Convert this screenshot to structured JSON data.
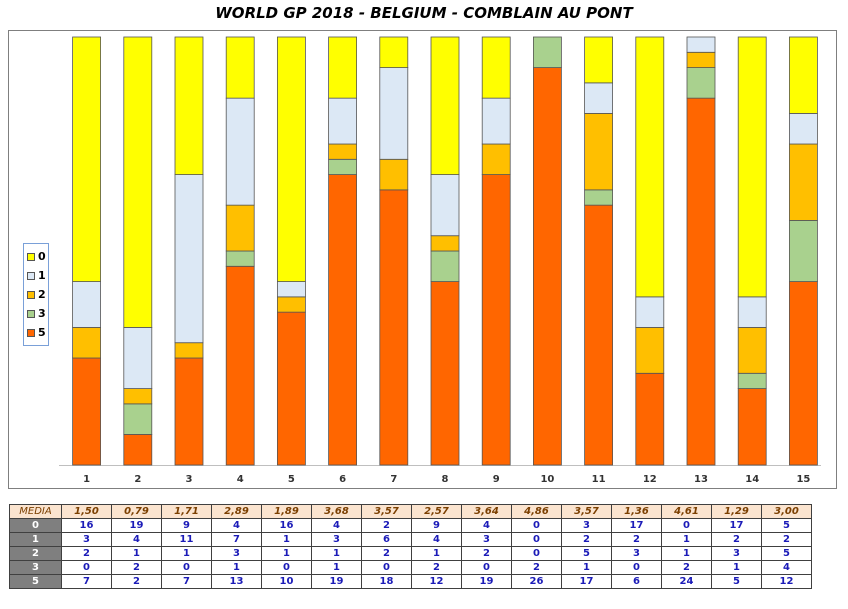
{
  "title": "WORLD GP 2018 - BELGIUM - COMBLAIN AU PONT",
  "colors": {
    "0": "#ffff00",
    "1": "#dce8f5",
    "2": "#ffbf00",
    "3": "#a9d18e",
    "5": "#ff6600"
  },
  "legend": [
    "0",
    "1",
    "2",
    "3",
    "5"
  ],
  "chart_data": {
    "type": "bar",
    "stacked": true,
    "title": "WORLD GP 2018 - BELGIUM - COMBLAIN AU PONT",
    "categories": [
      "1",
      "2",
      "3",
      "4",
      "5",
      "6",
      "7",
      "8",
      "9",
      "10",
      "11",
      "12",
      "13",
      "14",
      "15"
    ],
    "stack_order_bottom_to_top": [
      "5",
      "3",
      "2",
      "1",
      "0"
    ],
    "series": [
      {
        "name": "0",
        "values": [
          16,
          19,
          9,
          4,
          16,
          4,
          2,
          9,
          4,
          0,
          3,
          17,
          0,
          17,
          5
        ]
      },
      {
        "name": "1",
        "values": [
          3,
          4,
          11,
          7,
          1,
          3,
          6,
          4,
          3,
          0,
          2,
          2,
          1,
          2,
          2
        ]
      },
      {
        "name": "2",
        "values": [
          2,
          1,
          1,
          3,
          1,
          1,
          2,
          1,
          2,
          0,
          5,
          3,
          1,
          3,
          5
        ]
      },
      {
        "name": "3",
        "values": [
          0,
          2,
          0,
          1,
          0,
          1,
          0,
          2,
          0,
          2,
          1,
          0,
          2,
          1,
          4
        ]
      },
      {
        "name": "5",
        "values": [
          7,
          2,
          7,
          13,
          10,
          19,
          18,
          12,
          19,
          26,
          17,
          6,
          24,
          5,
          12
        ]
      }
    ],
    "ylim": [
      0,
      28
    ],
    "legend_position": "left",
    "grid": false
  },
  "table": {
    "media_label": "MEDIA",
    "media": [
      "1,50",
      "0,79",
      "1,71",
      "2,89",
      "1,89",
      "3,68",
      "3,57",
      "2,57",
      "3,64",
      "4,86",
      "3,57",
      "1,36",
      "4,61",
      "1,29",
      "3,00"
    ],
    "rows": [
      {
        "label": "0",
        "values": [
          "16",
          "19",
          "9",
          "4",
          "16",
          "4",
          "2",
          "9",
          "4",
          "0",
          "3",
          "17",
          "0",
          "17",
          "5"
        ]
      },
      {
        "label": "1",
        "values": [
          "3",
          "4",
          "11",
          "7",
          "1",
          "3",
          "6",
          "4",
          "3",
          "0",
          "2",
          "2",
          "1",
          "2",
          "2"
        ]
      },
      {
        "label": "2",
        "values": [
          "2",
          "1",
          "1",
          "3",
          "1",
          "1",
          "2",
          "1",
          "2",
          "0",
          "5",
          "3",
          "1",
          "3",
          "5"
        ]
      },
      {
        "label": "3",
        "values": [
          "0",
          "2",
          "0",
          "1",
          "0",
          "1",
          "0",
          "2",
          "0",
          "2",
          "1",
          "0",
          "2",
          "1",
          "4"
        ]
      },
      {
        "label": "5",
        "values": [
          "7",
          "2",
          "7",
          "13",
          "10",
          "19",
          "18",
          "12",
          "19",
          "26",
          "17",
          "6",
          "24",
          "5",
          "12"
        ]
      }
    ]
  }
}
